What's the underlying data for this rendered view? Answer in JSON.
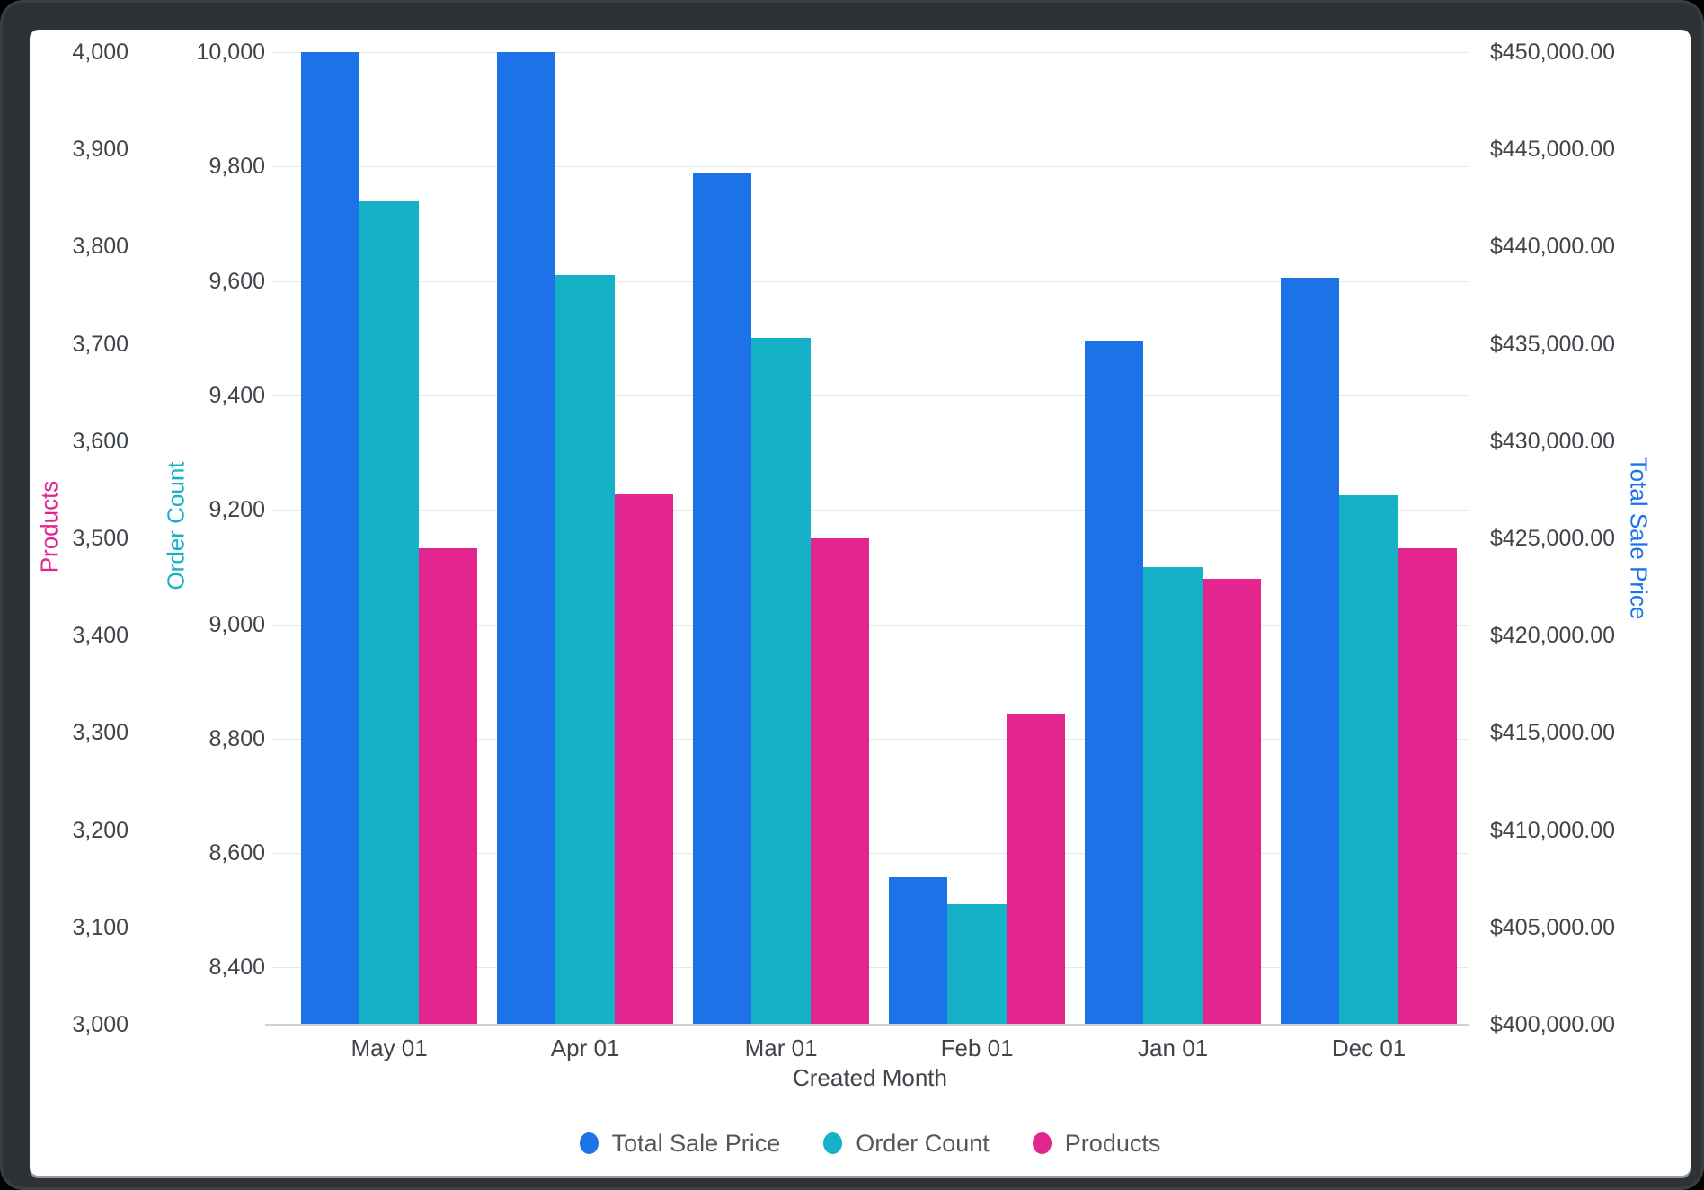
{
  "window": {
    "frame_color": "#2E3236"
  },
  "chart_data": {
    "type": "bar",
    "title": "",
    "categories": [
      "May 01",
      "Apr 01",
      "Mar 01",
      "Feb 01",
      "Jan 01",
      "Dec 01"
    ],
    "series": [
      {
        "name": "Total Sale Price",
        "color": "#1E72E8",
        "axis": "total_sale_price",
        "values": [
          450000,
          450000,
          443750,
          407600,
          435150,
          438400
        ]
      },
      {
        "name": "Order Count",
        "color": "#15B1C7",
        "axis": "order_count",
        "values": [
          9740,
          9610,
          9500,
          8510,
          9100,
          9225
        ]
      },
      {
        "name": "Products",
        "color": "#E2258F",
        "axis": "products",
        "values": [
          3490,
          3545,
          3500,
          3320,
          3458,
          3490
        ]
      }
    ],
    "axes": {
      "products": {
        "title": "Products",
        "color": "#E2258F",
        "min": 3000,
        "max": 4000,
        "ticks": [
          4000,
          3900,
          3800,
          3700,
          3600,
          3500,
          3400,
          3300,
          3200,
          3100,
          3000
        ],
        "format": "number"
      },
      "order_count": {
        "title": "Order Count",
        "color": "#15B1C7",
        "min": 8300,
        "max": 10000,
        "ticks": [
          10000,
          9800,
          9600,
          9400,
          9200,
          9000,
          8800,
          8600,
          8400
        ],
        "format": "number",
        "gridlines": true
      },
      "total_sale_price": {
        "title": "Total Sale Price",
        "color": "#1A73E8",
        "min": 400000,
        "max": 450000,
        "ticks": [
          450000,
          445000,
          440000,
          435000,
          430000,
          425000,
          420000,
          415000,
          410000,
          405000,
          400000
        ],
        "format": "currency"
      }
    },
    "x_axis": {
      "title": "Created Month"
    },
    "legend": [
      "Total Sale Price",
      "Order Count",
      "Products"
    ],
    "grid_color": "#E8E8E8",
    "baseline_color": "#CDD4DB",
    "tick_text_color": "#3F454A",
    "legend_text_color": "#54585D"
  }
}
